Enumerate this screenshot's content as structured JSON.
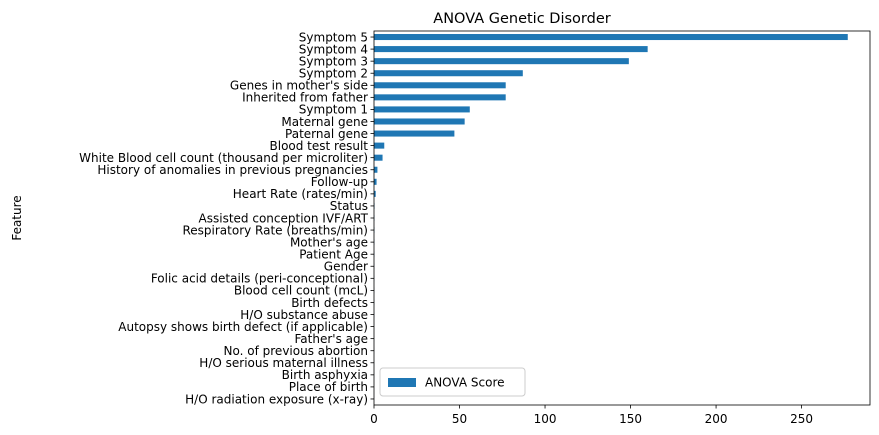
{
  "chart_data": {
    "type": "bar",
    "orientation": "horizontal",
    "title": "ANOVA Genetic Disorder",
    "xlabel": "",
    "ylabel": "Feature",
    "xlim": [
      0,
      290
    ],
    "xticks": [
      0,
      50,
      100,
      150,
      200,
      250
    ],
    "grid": false,
    "legend_position": "lower-left",
    "bar_color": "#1f77b4",
    "categories": [
      "Symptom 5",
      "Symptom 4",
      "Symptom 3",
      "Symptom 2",
      "Genes in mother's side",
      "Inherited from father",
      "Symptom 1",
      "Maternal gene",
      "Paternal gene",
      "Blood test result",
      "White Blood cell count (thousand per microliter)",
      "History of anomalies in previous pregnancies",
      "Follow-up",
      "Heart Rate (rates/min)",
      "Status",
      "Assisted conception IVF/ART",
      "Respiratory Rate (breaths/min)",
      "Mother's age",
      "Patient Age",
      "Gender",
      "Folic acid details (peri-conceptional)",
      "Blood cell count (mcL)",
      "Birth defects",
      "H/O substance abuse",
      "Autopsy shows birth defect (if applicable)",
      "Father's age",
      "No. of previous abortion",
      "H/O serious maternal illness",
      "Birth asphyxia",
      "Place of birth",
      "H/O radiation exposure (x-ray)"
    ],
    "series": [
      {
        "name": "ANOVA Score",
        "values": [
          277,
          160,
          149,
          87,
          77,
          77,
          56,
          53,
          47,
          6,
          5,
          2,
          1.5,
          1,
          0.3,
          0.2,
          0.2,
          0.15,
          0.15,
          0.1,
          0.1,
          0.1,
          0.1,
          0.1,
          0.05,
          0.05,
          0.05,
          0.05,
          0.05,
          0.02,
          0.01
        ]
      }
    ]
  }
}
